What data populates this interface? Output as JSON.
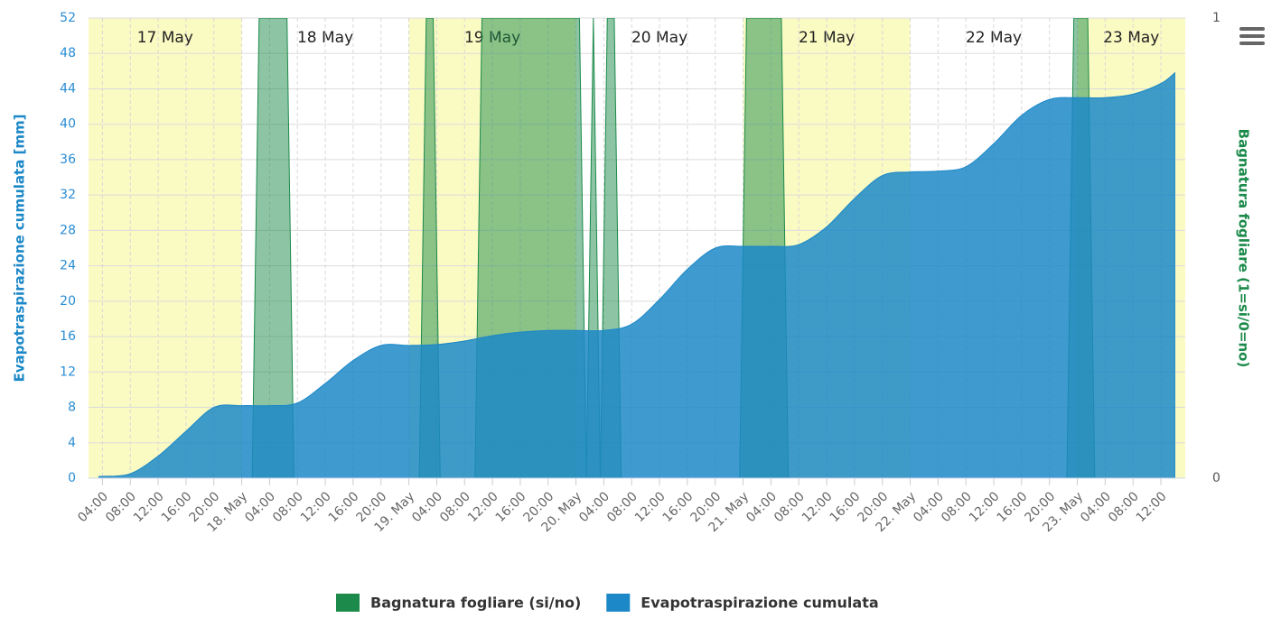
{
  "chart_data": {
    "type": "area",
    "ylabel": "Evapotraspirazione cumulata [mm]",
    "y2label": "Bagnatura fogliare (1=si/0=no)",
    "xlim": [
      "05-17T02:00",
      "05-23T15:30"
    ],
    "ylim": [
      0,
      52
    ],
    "yticks": [
      0,
      4,
      8,
      12,
      16,
      20,
      24,
      28,
      32,
      36,
      40,
      44,
      48,
      52
    ],
    "y2lim": [
      0,
      1
    ],
    "y2ticks": [
      0,
      1
    ],
    "grid": true,
    "xticks": [
      {
        "value": "05-17T04:00",
        "label": "04:00"
      },
      {
        "value": "05-17T08:00",
        "label": "08:00"
      },
      {
        "value": "05-17T12:00",
        "label": "12:00"
      },
      {
        "value": "05-17T16:00",
        "label": "16:00"
      },
      {
        "value": "05-17T20:00",
        "label": "20:00"
      },
      {
        "value": "05-18T00:00",
        "label": "18. May"
      },
      {
        "value": "05-18T04:00",
        "label": "04:00"
      },
      {
        "value": "05-18T08:00",
        "label": "08:00"
      },
      {
        "value": "05-18T12:00",
        "label": "12:00"
      },
      {
        "value": "05-18T16:00",
        "label": "16:00"
      },
      {
        "value": "05-18T20:00",
        "label": "20:00"
      },
      {
        "value": "05-19T00:00",
        "label": "19. May"
      },
      {
        "value": "05-19T04:00",
        "label": "04:00"
      },
      {
        "value": "05-19T08:00",
        "label": "08:00"
      },
      {
        "value": "05-19T12:00",
        "label": "12:00"
      },
      {
        "value": "05-19T16:00",
        "label": "16:00"
      },
      {
        "value": "05-19T20:00",
        "label": "20:00"
      },
      {
        "value": "05-20T00:00",
        "label": "20. May"
      },
      {
        "value": "05-20T04:00",
        "label": "04:00"
      },
      {
        "value": "05-20T08:00",
        "label": "08:00"
      },
      {
        "value": "05-20T12:00",
        "label": "12:00"
      },
      {
        "value": "05-20T16:00",
        "label": "16:00"
      },
      {
        "value": "05-20T20:00",
        "label": "20:00"
      },
      {
        "value": "05-21T00:00",
        "label": "21. May"
      },
      {
        "value": "05-21T04:00",
        "label": "04:00"
      },
      {
        "value": "05-21T08:00",
        "label": "08:00"
      },
      {
        "value": "05-21T12:00",
        "label": "12:00"
      },
      {
        "value": "05-21T16:00",
        "label": "16:00"
      },
      {
        "value": "05-21T20:00",
        "label": "20:00"
      },
      {
        "value": "05-22T00:00",
        "label": "22. May"
      },
      {
        "value": "05-22T04:00",
        "label": "04:00"
      },
      {
        "value": "05-22T08:00",
        "label": "08:00"
      },
      {
        "value": "05-22T12:00",
        "label": "12:00"
      },
      {
        "value": "05-22T16:00",
        "label": "16:00"
      },
      {
        "value": "05-22T20:00",
        "label": "20:00"
      },
      {
        "value": "05-23T00:00",
        "label": "23. May"
      },
      {
        "value": "05-23T04:00",
        "label": "04:00"
      },
      {
        "value": "05-23T08:00",
        "label": "08:00"
      },
      {
        "value": "05-23T12:00",
        "label": "12:00"
      }
    ],
    "plot_bands": [
      {
        "from": "05-17T00:00",
        "to": "05-18T00:00",
        "label": "17 May",
        "color": "#fafac3"
      },
      {
        "from": "05-18T00:00",
        "to": "05-19T00:00",
        "label": "18 May",
        "color": "#ffffff"
      },
      {
        "from": "05-19T00:00",
        "to": "05-20T00:00",
        "label": "19 May",
        "color": "#fafac3"
      },
      {
        "from": "05-20T00:00",
        "to": "05-21T00:00",
        "label": "20 May",
        "color": "#ffffff"
      },
      {
        "from": "05-21T00:00",
        "to": "05-22T00:00",
        "label": "21 May",
        "color": "#fafac3"
      },
      {
        "from": "05-22T00:00",
        "to": "05-23T00:00",
        "label": "22 May",
        "color": "#ffffff"
      },
      {
        "from": "05-23T00:00",
        "to": "05-24T00:00",
        "label": "23 May",
        "color": "#fafac3"
      }
    ],
    "series": [
      {
        "name": "Bagnatura fogliare (si/no)",
        "color": "#1b8a4a",
        "axis": "y2",
        "x": [
          "05-18T01:30",
          "05-18T02:30",
          "05-18T06:30",
          "05-18T07:30",
          "05-19T01:30",
          "05-19T02:30",
          "05-19T03:30",
          "05-19T04:30",
          "05-19T09:30",
          "05-19T10:30",
          "05-20T00:30",
          "05-20T01:30",
          "05-20T02:30",
          "05-20T03:30",
          "05-20T04:30",
          "05-20T05:30",
          "05-20T06:30",
          "05-20T23:30",
          "05-21T00:30",
          "05-21T05:30",
          "05-21T06:30",
          "05-22T22:30",
          "05-22T23:30",
          "05-23T01:30",
          "05-23T02:30"
        ],
        "values": [
          0,
          1,
          1,
          0,
          0,
          1,
          1,
          0,
          0,
          1,
          1,
          0,
          1,
          0,
          1,
          1,
          0,
          0,
          1,
          1,
          0,
          0,
          1,
          1,
          0
        ]
      },
      {
        "name": "Evapotraspirazione cumulata",
        "color": "#1c88c7",
        "x": [
          "05-17T03:30",
          "05-17T04:00",
          "05-17T08:00",
          "05-17T12:00",
          "05-17T16:00",
          "05-17T20:00",
          "05-18T00:00",
          "05-18T04:00",
          "05-18T08:00",
          "05-18T12:00",
          "05-18T16:00",
          "05-18T20:00",
          "05-19T00:00",
          "05-19T04:00",
          "05-19T08:00",
          "05-19T12:00",
          "05-19T16:00",
          "05-19T20:00",
          "05-20T00:00",
          "05-20T04:00",
          "05-20T08:00",
          "05-20T12:00",
          "05-20T16:00",
          "05-20T20:00",
          "05-21T00:00",
          "05-21T04:00",
          "05-21T08:00",
          "05-21T12:00",
          "05-21T16:00",
          "05-21T20:00",
          "05-22T00:00",
          "05-22T04:00",
          "05-22T08:00",
          "05-22T12:00",
          "05-22T16:00",
          "05-22T20:00",
          "05-23T00:00",
          "05-23T04:00",
          "05-23T08:00",
          "05-23T12:00",
          "05-23T14:00"
        ],
        "values": [
          0.2,
          0.2,
          0.5,
          2.5,
          5.3,
          8.0,
          8.2,
          8.2,
          8.5,
          10.7,
          13.3,
          15.0,
          15.0,
          15.1,
          15.5,
          16.1,
          16.5,
          16.7,
          16.7,
          16.7,
          17.4,
          20.2,
          23.6,
          26.0,
          26.2,
          26.2,
          26.4,
          28.4,
          31.6,
          34.2,
          34.6,
          34.7,
          35.2,
          37.8,
          41.0,
          42.8,
          43.0,
          43.0,
          43.4,
          44.6,
          45.8
        ]
      }
    ]
  }
}
